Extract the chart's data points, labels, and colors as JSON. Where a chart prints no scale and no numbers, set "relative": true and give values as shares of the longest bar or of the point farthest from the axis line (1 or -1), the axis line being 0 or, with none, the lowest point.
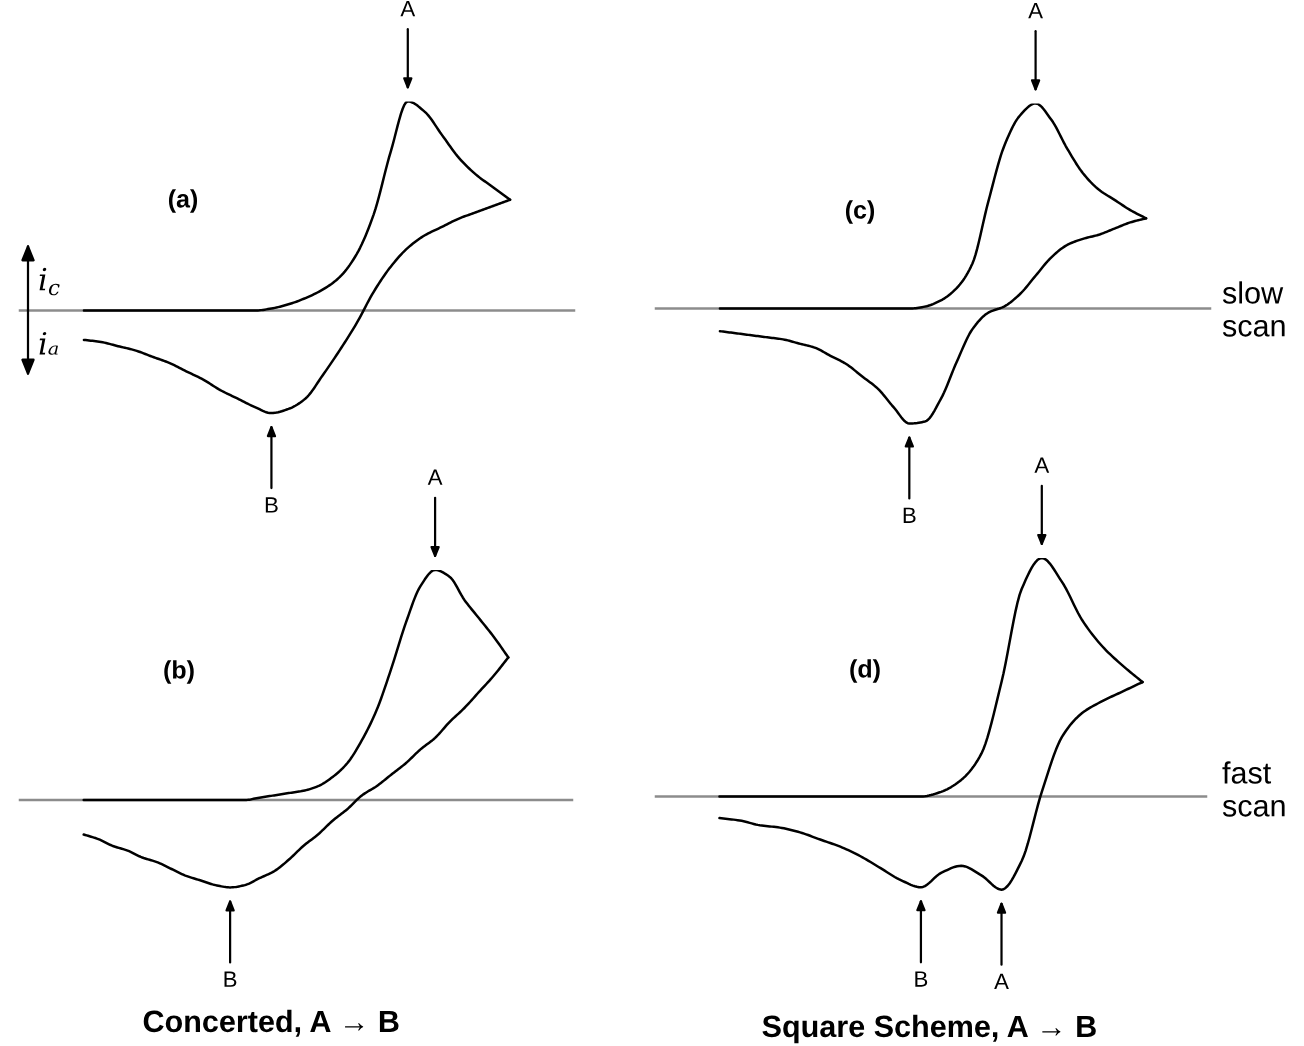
{
  "chart_data": [
    {
      "type": "line",
      "title": "(a)",
      "relative": true,
      "categories": [
        null,
        null,
        null,
        null,
        null,
        null,
        null,
        null,
        null,
        null,
        null,
        null,
        null,
        null,
        null,
        null,
        null,
        null,
        null,
        null,
        null,
        null,
        null,
        null,
        null,
        null
      ],
      "series": [
        {
          "color": "#000000",
          "values": [
            0,
            0,
            0,
            0,
            0,
            0,
            0,
            0,
            0,
            0,
            0,
            0.01,
            0.03,
            0.06,
            0.1,
            0.16,
            0.27,
            0.46,
            0.76,
            1.0,
            0.95,
            0.84,
            0.73,
            0.65,
            0.59,
            0.53
          ]
        },
        {
          "color": "#000000",
          "values": [
            -0.14,
            -0.15,
            -0.17,
            -0.19,
            -0.22,
            -0.25,
            -0.29,
            -0.33,
            -0.38,
            -0.42,
            -0.46,
            -0.49,
            -0.47,
            -0.42,
            -0.31,
            -0.19,
            -0.06,
            0.09,
            0.21,
            0.3,
            0.36,
            0.4,
            0.44,
            0.47,
            0.5,
            0.53
          ]
        }
      ],
      "annotations": [
        "i$_{c}$",
        "iₐ",
        {
          "text": "A",
          "y": 1.0
        },
        {
          "text": "B",
          "y": -0.49
        }
      ]
    },
    {
      "type": "line",
      "title": "(c)",
      "relative": true,
      "categories": [
        null,
        null,
        null,
        null,
        null,
        null,
        null,
        null,
        null,
        null,
        null,
        null,
        null,
        null,
        null,
        null,
        null,
        null,
        null,
        null,
        null,
        null,
        null,
        null,
        null,
        null,
        null,
        null
      ],
      "series": [
        {
          "color": "#000000",
          "values": [
            0,
            0,
            0,
            0,
            0,
            0,
            0,
            0,
            0,
            0,
            0,
            0,
            0,
            0.01,
            0.04,
            0.1,
            0.22,
            0.52,
            0.79,
            0.94,
            1.0,
            0.92,
            0.78,
            0.66,
            0.58,
            0.53,
            0.48,
            0.44
          ]
        },
        {
          "color": "#000000",
          "values": [
            -0.11,
            -0.12,
            -0.13,
            -0.14,
            -0.15,
            -0.17,
            -0.19,
            -0.23,
            -0.27,
            -0.33,
            -0.39,
            -0.48,
            -0.56,
            -0.55,
            -0.44,
            -0.26,
            -0.1,
            -0.02,
            0.01,
            0.07,
            0.16,
            0.25,
            0.31,
            0.34,
            0.36,
            0.39,
            0.42,
            0.44
          ]
        }
      ],
      "annotations": [
        "slow scan",
        {
          "text": "A",
          "y": 1.0
        },
        {
          "text": "B",
          "y": -0.56
        }
      ]
    },
    {
      "type": "line",
      "title": "(b)",
      "relative": true,
      "categories": [
        null,
        null,
        null,
        null,
        null,
        null,
        null,
        null,
        null,
        null,
        null,
        null,
        null,
        null,
        null,
        null,
        null,
        null,
        null,
        null,
        null,
        null,
        null,
        null,
        null,
        null,
        null,
        null,
        null,
        null
      ],
      "series": [
        {
          "color": "#000000",
          "values": [
            0,
            0,
            0,
            0,
            0,
            0,
            0,
            0,
            0,
            0,
            0,
            0,
            0.01,
            0.02,
            0.03,
            0.04,
            0.06,
            0.1,
            0.16,
            0.26,
            0.39,
            0.57,
            0.77,
            0.93,
            1.0,
            0.97,
            0.87,
            0.79,
            0.71,
            0.62
          ]
        },
        {
          "color": "#000000",
          "values": [
            -0.15,
            -0.17,
            -0.2,
            -0.22,
            -0.25,
            -0.27,
            -0.3,
            -0.33,
            -0.35,
            -0.37,
            -0.38,
            -0.37,
            -0.34,
            -0.31,
            -0.26,
            -0.2,
            -0.15,
            -0.09,
            -0.04,
            0.02,
            0.06,
            0.11,
            0.16,
            0.22,
            0.27,
            0.34,
            0.4,
            0.47,
            0.54,
            0.62
          ]
        }
      ],
      "annotations": [
        "Concerted, A → B",
        {
          "text": "A",
          "y": 1.0
        },
        {
          "text": "B",
          "y": -0.38
        }
      ]
    },
    {
      "type": "line",
      "title": "(d)",
      "relative": true,
      "categories": [
        null,
        null,
        null,
        null,
        null,
        null,
        null,
        null,
        null,
        null,
        null,
        null,
        null,
        null,
        null,
        null,
        null,
        null,
        null,
        null,
        null,
        null
      ],
      "series": [
        {
          "color": "#000000",
          "values": [
            0,
            0,
            0,
            0,
            0,
            0,
            0,
            0,
            0,
            0,
            0,
            0.02,
            0.07,
            0.18,
            0.48,
            0.87,
            1.0,
            0.9,
            0.74,
            0.63,
            0.55,
            0.48
          ]
        },
        {
          "color": "#000000",
          "values": [
            -0.09,
            -0.1,
            -0.12,
            -0.13,
            -0.15,
            -0.18,
            -0.21,
            -0.25,
            -0.3,
            -0.35,
            -0.38,
            -0.32,
            -0.29,
            -0.33,
            -0.39,
            -0.27,
            0.02,
            0.25,
            0.35,
            0.4,
            0.44,
            0.48
          ]
        }
      ],
      "annotations": [
        "fast scan",
        "Square Scheme, A → B",
        {
          "text": "A",
          "y": 1.0
        },
        {
          "text": "B",
          "y": -0.38
        },
        {
          "text": "A",
          "y": -0.39
        }
      ]
    }
  ]
}
